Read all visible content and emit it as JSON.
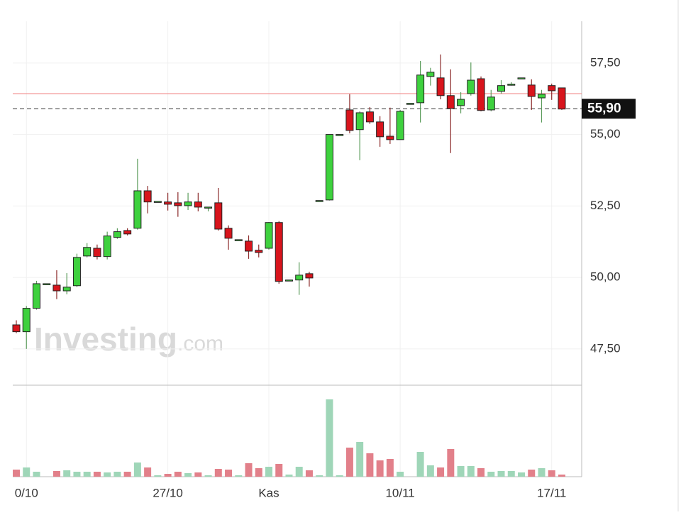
{
  "chart_data": {
    "type": "candlestick",
    "watermark": "Investing",
    "watermark_suffix": ".com",
    "categories": [
      null,
      "0/10",
      null,
      null,
      null,
      null,
      null,
      null,
      null,
      null,
      null,
      null,
      null,
      null,
      null,
      "27/10",
      null,
      null,
      null,
      null,
      null,
      null,
      null,
      null,
      null,
      "Kas",
      null,
      null,
      null,
      null,
      null,
      null,
      null,
      null,
      null,
      null,
      null,
      null,
      "10/11",
      null,
      null,
      null,
      null,
      null,
      null,
      null,
      null,
      null,
      null,
      null,
      null,
      null,
      null,
      "17/11",
      null
    ],
    "open": [
      48.34,
      48.1,
      48.92,
      49.78,
      49.73,
      49.53,
      49.71,
      50.75,
      51.02,
      50.73,
      51.4,
      51.64,
      51.72,
      53.03,
      52.66,
      52.64,
      52.61,
      52.51,
      52.64,
      52.46,
      52.61,
      51.72,
      51.32,
      51.27,
      50.95,
      51.02,
      51.92,
      49.91,
      49.91,
      50.13,
      52.69,
      52.71,
      55.0,
      55.86,
      55.17,
      55.79,
      55.44,
      54.94,
      54.82,
      56.09,
      56.11,
      57.03,
      56.98,
      56.36,
      56.01,
      56.43,
      56.95,
      55.86,
      56.51,
      56.76,
      56.98,
      56.73,
      56.28,
      56.71,
      56.63
    ],
    "high": [
      48.5,
      49.0,
      49.88,
      49.78,
      50.25,
      50.15,
      50.83,
      51.2,
      51.15,
      51.6,
      51.72,
      51.72,
      54.15,
      53.2,
      52.66,
      52.96,
      52.98,
      52.96,
      52.96,
      52.46,
      53.13,
      51.82,
      51.32,
      51.47,
      51.15,
      51.94,
      51.97,
      49.91,
      50.53,
      50.2,
      52.69,
      55.0,
      55.0,
      56.41,
      55.81,
      55.96,
      55.64,
      55.94,
      55.86,
      56.09,
      57.57,
      57.33,
      57.8,
      57.28,
      56.48,
      57.52,
      57.03,
      56.56,
      56.9,
      56.83,
      56.98,
      56.93,
      56.56,
      56.78,
      56.63
    ],
    "low": [
      48.05,
      47.5,
      48.87,
      49.78,
      49.24,
      49.41,
      49.66,
      50.7,
      50.63,
      50.63,
      51.35,
      51.47,
      51.67,
      52.24,
      52.66,
      52.34,
      52.12,
      52.36,
      52.31,
      52.31,
      51.64,
      50.97,
      51.32,
      50.65,
      50.7,
      50.97,
      49.78,
      49.91,
      49.39,
      49.68,
      52.69,
      52.69,
      55.0,
      55.04,
      54.1,
      55.37,
      54.57,
      54.67,
      54.82,
      56.09,
      55.42,
      56.71,
      56.23,
      54.35,
      55.74,
      56.36,
      55.81,
      55.81,
      56.43,
      56.71,
      56.98,
      55.86,
      55.42,
      56.21,
      55.86
    ],
    "close": [
      48.1,
      48.92,
      49.78,
      49.78,
      49.53,
      49.66,
      50.7,
      51.05,
      50.73,
      51.45,
      51.6,
      51.52,
      53.03,
      52.64,
      52.66,
      52.56,
      52.51,
      52.64,
      52.46,
      52.46,
      51.69,
      51.37,
      51.32,
      50.92,
      50.87,
      51.92,
      49.86,
      49.91,
      50.08,
      49.98,
      52.69,
      55.0,
      55.0,
      55.14,
      55.76,
      55.44,
      54.92,
      54.82,
      55.81,
      56.09,
      57.08,
      57.18,
      56.36,
      55.91,
      56.23,
      56.9,
      55.84,
      56.31,
      56.71,
      56.76,
      56.98,
      56.33,
      56.41,
      56.53,
      55.89
    ],
    "volume": [
      10,
      13,
      7,
      0,
      8,
      9,
      7,
      7,
      7,
      6,
      7,
      7,
      20,
      13,
      2,
      4,
      7,
      5,
      6,
      2,
      11,
      10,
      2,
      19,
      12,
      14,
      18,
      3,
      14,
      9,
      2,
      109,
      2,
      41,
      49,
      33,
      23,
      25,
      7,
      0,
      35,
      16,
      13,
      39,
      15,
      15,
      12,
      7,
      8,
      8,
      6,
      10,
      12,
      9,
      3
    ],
    "up_color": "#3ed13e",
    "down_color": "#d8141c",
    "volume_up_color": "#9fd6b8",
    "volume_down_color": "#e2808a",
    "ylim": [
      46.23,
      58.96
    ],
    "yticks": [
      {
        "value": 47.5,
        "label": "47,50"
      },
      {
        "value": 50,
        "label": "50,00"
      },
      {
        "value": 52.5,
        "label": "52,50"
      },
      {
        "value": 55,
        "label": "55,00"
      },
      {
        "value": 57.5,
        "label": "57,50"
      }
    ],
    "volume_lim": [
      0,
      127
    ],
    "reference_line": 56.43,
    "last_price": {
      "value": 55.9,
      "label": "55,90"
    },
    "grid": true
  }
}
